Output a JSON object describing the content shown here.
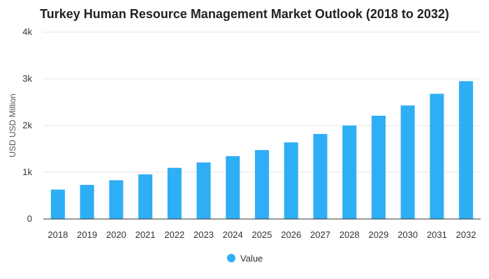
{
  "chart_data": {
    "type": "bar",
    "title": "Turkey Human Resource Management Market Outlook (2018 to 2032)",
    "xlabel": "",
    "ylabel": "USD USD Million",
    "categories": [
      "2018",
      "2019",
      "2020",
      "2021",
      "2022",
      "2023",
      "2024",
      "2025",
      "2026",
      "2027",
      "2028",
      "2029",
      "2030",
      "2031",
      "2032"
    ],
    "series": [
      {
        "name": "Value",
        "values": [
          630,
          730,
          830,
          955,
          1095,
          1210,
          1345,
          1475,
          1640,
          1820,
          2000,
          2210,
          2430,
          2680,
          2950
        ]
      }
    ],
    "ylim": [
      0,
      4000
    ],
    "yticks": [
      0,
      1000,
      2000,
      3000,
      4000
    ],
    "ytick_labels": [
      "0",
      "1k",
      "2k",
      "3k",
      "4k"
    ],
    "grid": true,
    "legend_position": "bottom-center",
    "colors": {
      "bar": "#2eaef5",
      "grid": "#e6e6e6",
      "axis": "#333333"
    }
  }
}
